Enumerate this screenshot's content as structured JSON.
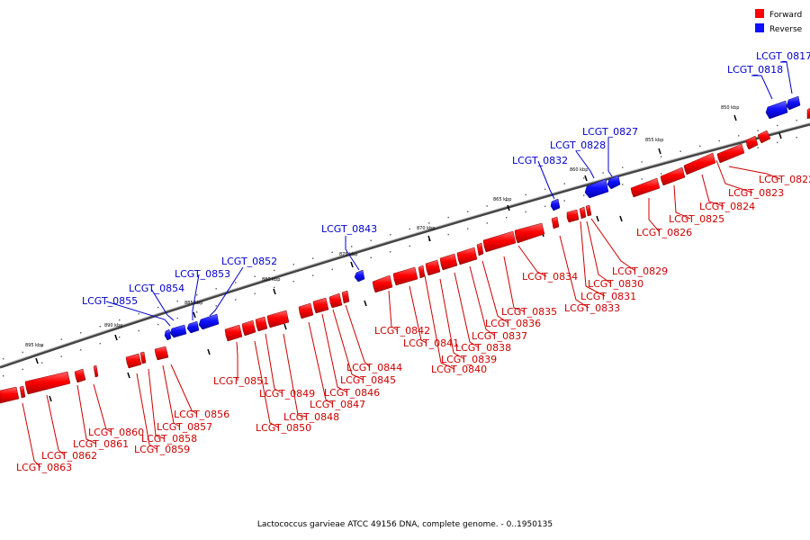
{
  "legend": {
    "forward_label": "Forward",
    "reverse_label": "Reverse",
    "forward_color": "#ff0000",
    "reverse_color": "#1010ff"
  },
  "caption": "Lactococcus garvieae ATCC 49156 DNA, complete genome. - 0..1950135",
  "ticks": [
    "850 kbp",
    "855 kbp",
    "860 kbp",
    "865 kbp",
    "870 kbp",
    "875 kbp",
    "880 kbp",
    "885 kbp",
    "890 kbp",
    "895 kbp"
  ],
  "reverse_genes": [
    "LCGT_0817",
    "LCGT_0818",
    "LCGT_0827",
    "LCGT_0828",
    "LCGT_0832",
    "LCGT_0843",
    "LCGT_0852",
    "LCGT_0853",
    "LCGT_0854",
    "LCGT_0855"
  ],
  "forward_genes": [
    "LCGT_0822",
    "LCGT_0823",
    "LCGT_0824",
    "LCGT_0825",
    "LCGT_0826",
    "LCGT_0829",
    "LCGT_0830",
    "LCGT_0831",
    "LCGT_0833",
    "LCGT_0834",
    "LCGT_0835",
    "LCGT_0836",
    "LCGT_0837",
    "LCGT_0838",
    "LCGT_0839",
    "LCGT_0840",
    "LCGT_0841",
    "LCGT_0842",
    "LCGT_0844",
    "LCGT_0845",
    "LCGT_0846",
    "LCGT_0847",
    "LCGT_0848",
    "LCGT_0849",
    "LCGT_0850",
    "LCGT_0851",
    "LCGT_0856",
    "LCGT_0857",
    "LCGT_0858",
    "LCGT_0859",
    "LCGT_0860",
    "LCGT_0861",
    "LCGT_0862",
    "LCGT_0863"
  ]
}
